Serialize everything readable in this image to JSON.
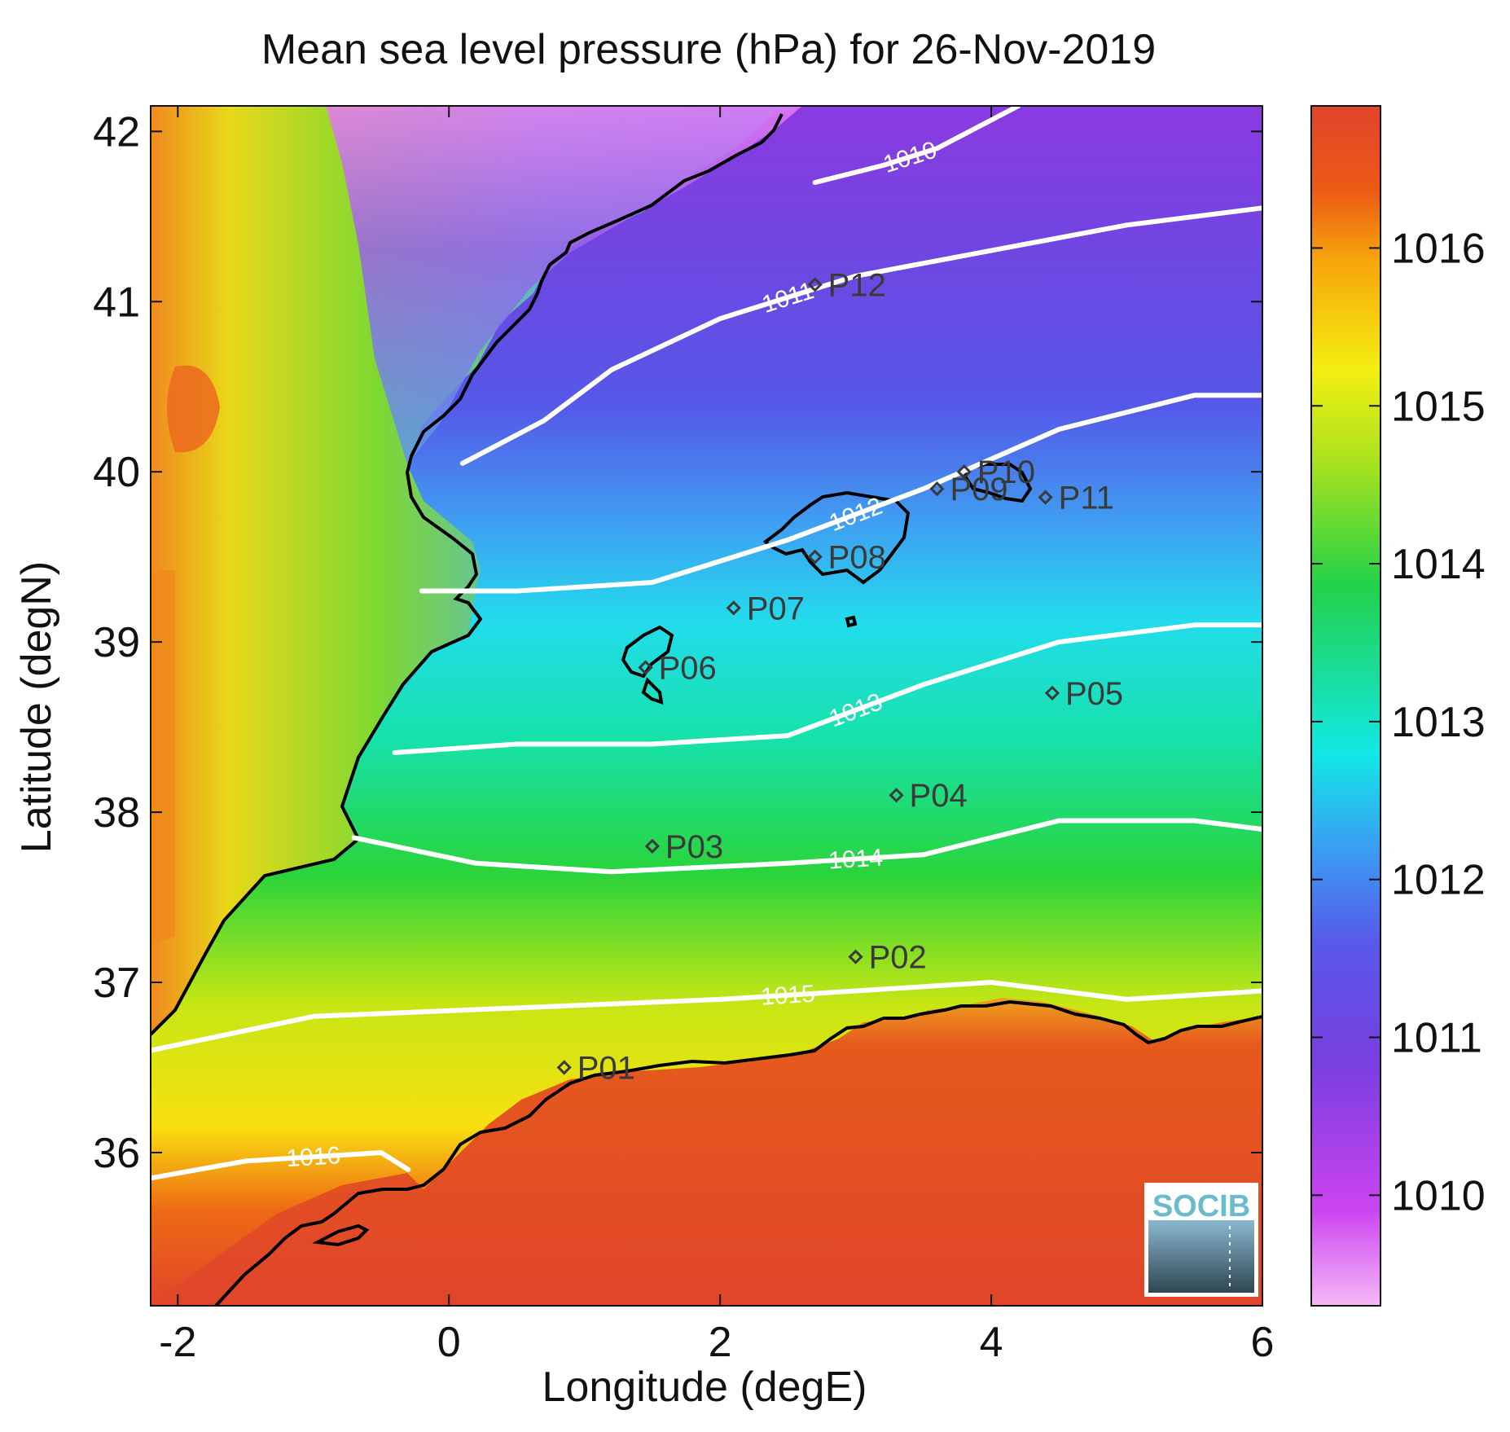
{
  "title": "Mean sea level pressure (hPa) for 26-Nov-2019",
  "xlabel": "Longitude (degE)",
  "ylabel": "Latitude (degN)",
  "x_ticks": [
    "-2",
    "0",
    "2",
    "4",
    "6"
  ],
  "y_ticks": [
    "36",
    "37",
    "38",
    "39",
    "40",
    "41",
    "42"
  ],
  "colorbar_ticks": [
    "1010",
    "1011",
    "1012",
    "1013",
    "1014",
    "1015",
    "1016"
  ],
  "logo_text": "SOCIB",
  "map": {
    "lon_range": [
      -2.2,
      6.0
    ],
    "lat_range": [
      35.1,
      42.15
    ],
    "colorbar_range": [
      1009.3,
      1016.9
    ],
    "colorscale": [
      "#f5b8f8",
      "#cc44f0",
      "#7a3ee0",
      "#5858e8",
      "#3b9cf4",
      "#12e8e6",
      "#22d24a",
      "#a6e21e",
      "#f4ee12",
      "#f7a60c",
      "#ec5a16",
      "#e0452a"
    ],
    "stations": [
      {
        "id": "P01",
        "lon": 0.85,
        "lat": 36.5
      },
      {
        "id": "P02",
        "lon": 3.0,
        "lat": 37.15
      },
      {
        "id": "P03",
        "lon": 1.5,
        "lat": 37.8
      },
      {
        "id": "P04",
        "lon": 3.3,
        "lat": 38.1
      },
      {
        "id": "P05",
        "lon": 4.45,
        "lat": 38.7
      },
      {
        "id": "P06",
        "lon": 1.45,
        "lat": 38.85
      },
      {
        "id": "P07",
        "lon": 2.1,
        "lat": 39.2
      },
      {
        "id": "P08",
        "lon": 2.7,
        "lat": 39.5
      },
      {
        "id": "P09",
        "lon": 3.6,
        "lat": 39.9
      },
      {
        "id": "P10",
        "lon": 3.8,
        "lat": 40.0
      },
      {
        "id": "P11",
        "lon": 4.4,
        "lat": 39.85
      },
      {
        "id": "P12",
        "lon": 2.7,
        "lat": 41.1
      }
    ],
    "contours": [
      {
        "label": "1010",
        "points": [
          [
            2.7,
            41.7
          ],
          [
            3.2,
            41.8
          ],
          [
            3.6,
            41.9
          ],
          [
            4.2,
            42.15
          ]
        ]
      },
      {
        "label": "1011",
        "points": [
          [
            0.1,
            40.05
          ],
          [
            0.7,
            40.3
          ],
          [
            1.2,
            40.6
          ],
          [
            2.0,
            40.9
          ],
          [
            3.0,
            41.15
          ],
          [
            4.0,
            41.3
          ],
          [
            5.0,
            41.45
          ],
          [
            6.0,
            41.55
          ]
        ]
      },
      {
        "label": "1012",
        "points": [
          [
            -0.2,
            39.3
          ],
          [
            0.5,
            39.3
          ],
          [
            1.5,
            39.35
          ],
          [
            2.5,
            39.6
          ],
          [
            3.5,
            39.9
          ],
          [
            4.5,
            40.25
          ],
          [
            5.5,
            40.45
          ],
          [
            6.0,
            40.45
          ]
        ]
      },
      {
        "label": "1013",
        "points": [
          [
            -0.4,
            38.35
          ],
          [
            0.5,
            38.4
          ],
          [
            1.5,
            38.4
          ],
          [
            2.5,
            38.45
          ],
          [
            3.5,
            38.75
          ],
          [
            4.5,
            39.0
          ],
          [
            5.5,
            39.1
          ],
          [
            6.0,
            39.1
          ]
        ]
      },
      {
        "label": "1014",
        "points": [
          [
            -0.7,
            37.85
          ],
          [
            0.2,
            37.7
          ],
          [
            1.2,
            37.65
          ],
          [
            2.5,
            37.7
          ],
          [
            3.5,
            37.75
          ],
          [
            4.5,
            37.95
          ],
          [
            5.5,
            37.95
          ],
          [
            6.0,
            37.9
          ]
        ]
      },
      {
        "label": "1015",
        "points": [
          [
            -2.2,
            36.6
          ],
          [
            -1.0,
            36.8
          ],
          [
            0.5,
            36.85
          ],
          [
            2.0,
            36.9
          ],
          [
            3.0,
            36.95
          ],
          [
            4.0,
            37.0
          ],
          [
            5.0,
            36.9
          ],
          [
            6.0,
            36.95
          ]
        ]
      },
      {
        "label": "1016",
        "points": [
          [
            -2.2,
            35.85
          ],
          [
            -1.5,
            35.95
          ],
          [
            -0.5,
            36.0
          ],
          [
            -0.3,
            35.9
          ]
        ]
      }
    ]
  }
}
